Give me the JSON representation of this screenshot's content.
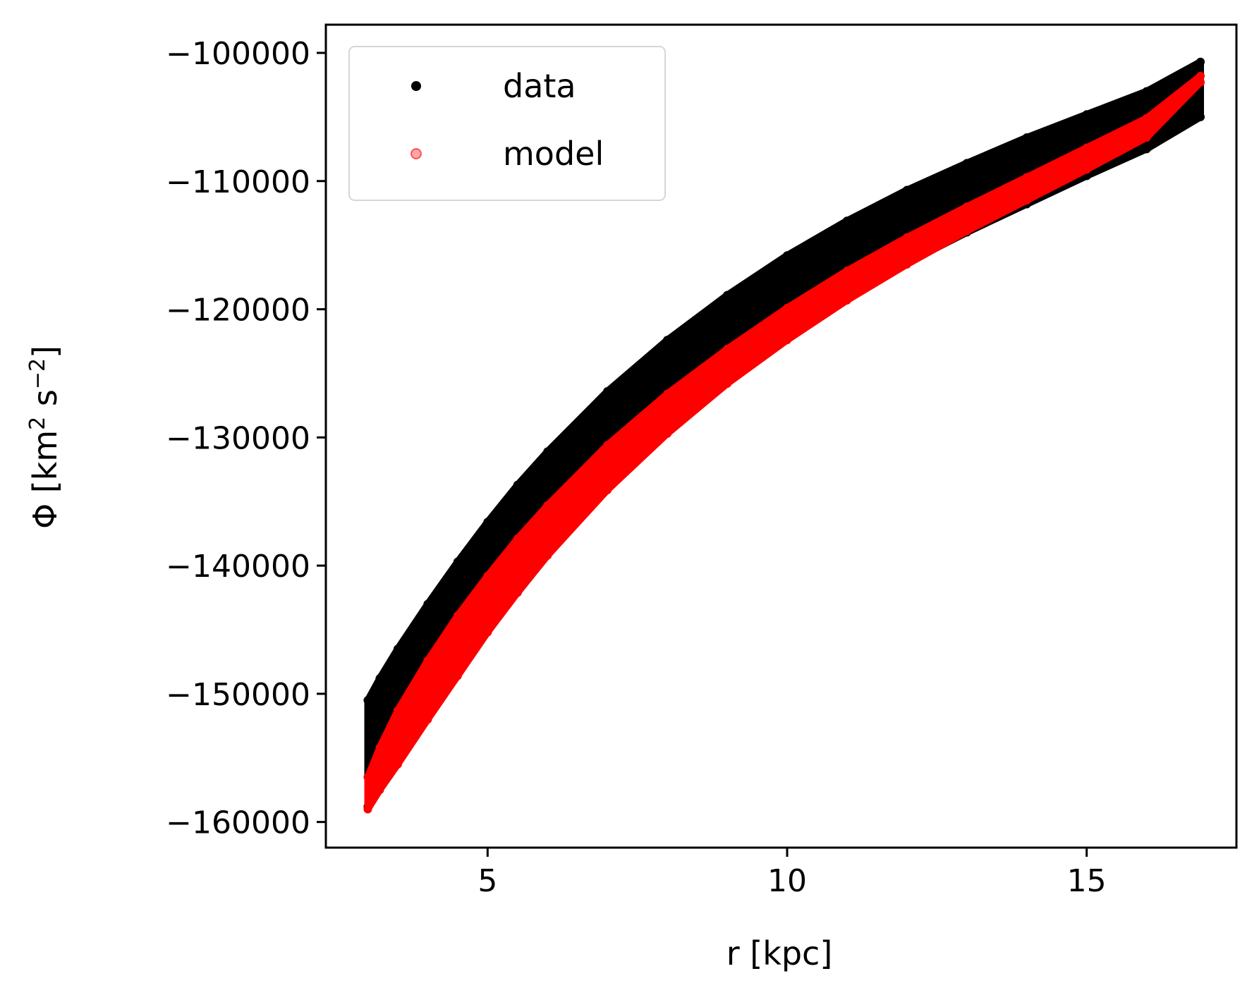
{
  "chart_data": {
    "type": "scatter",
    "xlabel": "r [kpc]",
    "ylabel_parts": [
      "Φ [km",
      "2",
      " s",
      "−2",
      "]"
    ],
    "xlim": [
      2.3,
      17.5
    ],
    "ylim": [
      -162000,
      -97800
    ],
    "xticks": [
      5,
      10,
      15
    ],
    "xtick_labels": [
      "5",
      "10",
      "15"
    ],
    "yticks": [
      -160000,
      -150000,
      -140000,
      -130000,
      -120000,
      -110000,
      -100000
    ],
    "ytick_labels": [
      "−160000",
      "−150000",
      "−140000",
      "−130000",
      "−120000",
      "−110000",
      "−100000"
    ],
    "legend_position": "upper-left",
    "series": [
      {
        "name": "data",
        "color": "#000000",
        "x": [
          3.0,
          3.2,
          3.5,
          4.0,
          4.5,
          5.0,
          5.5,
          6.0,
          7.0,
          8.0,
          9.0,
          10.0,
          11.0,
          12.0,
          13.0,
          14.0,
          15.0,
          16.0,
          16.9
        ],
        "y_upper": [
          -150500,
          -148800,
          -146500,
          -143000,
          -139700,
          -136600,
          -133700,
          -131100,
          -126400,
          -122400,
          -118900,
          -115800,
          -113100,
          -110700,
          -108600,
          -106600,
          -104800,
          -103000,
          -100700
        ],
        "y_lower": [
          -158800,
          -157300,
          -155200,
          -151700,
          -148300,
          -145100,
          -142100,
          -139200,
          -134000,
          -129500,
          -125600,
          -122200,
          -119100,
          -116400,
          -114000,
          -111800,
          -109600,
          -107500,
          -105000
        ]
      },
      {
        "name": "model",
        "color": "#ff0000",
        "x": [
          3.0,
          3.2,
          3.5,
          4.0,
          4.5,
          5.0,
          5.5,
          6.0,
          7.0,
          8.0,
          9.0,
          10.0,
          11.0,
          12.0,
          13.0,
          14.0,
          15.0,
          16.0,
          16.9
        ],
        "y_upper": [
          -156500,
          -154200,
          -151300,
          -147400,
          -143900,
          -140800,
          -137900,
          -135300,
          -130600,
          -126600,
          -123100,
          -119900,
          -117000,
          -114400,
          -112000,
          -109700,
          -107400,
          -105100,
          -101800
        ],
        "y_lower": [
          -159000,
          -157500,
          -155500,
          -152000,
          -148600,
          -145200,
          -142100,
          -139200,
          -134100,
          -129700,
          -125800,
          -122400,
          -119300,
          -116500,
          -113900,
          -111500,
          -109100,
          -106600,
          -102300
        ]
      }
    ]
  }
}
